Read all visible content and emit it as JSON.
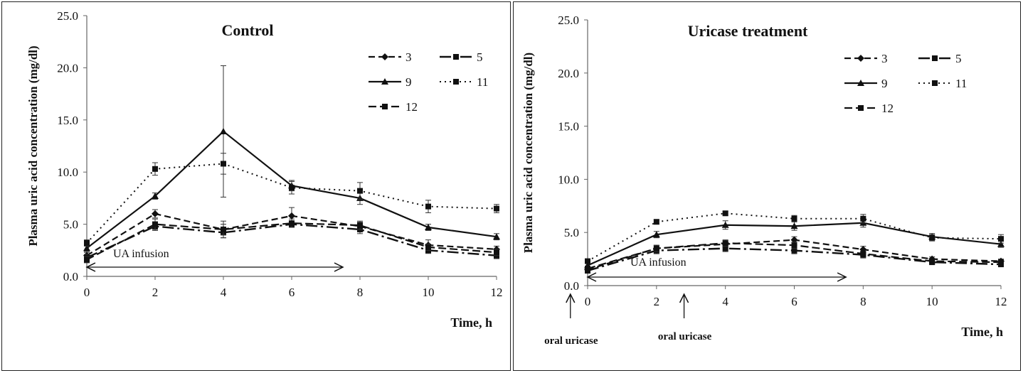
{
  "chart_data": [
    {
      "type": "line",
      "title": "Control",
      "ylabel": "Plasma uric acid concentration (mg/dl)",
      "xlabel": "Time, h",
      "ylim": [
        0,
        25
      ],
      "xlim": [
        0,
        12
      ],
      "yticks": [
        "0.0",
        "5.0",
        "10.0",
        "15.0",
        "20.0",
        "25.0"
      ],
      "xticks": [
        "0",
        "2",
        "4",
        "6",
        "8",
        "10",
        "12"
      ],
      "x": [
        0,
        2,
        4,
        6,
        8,
        10,
        12
      ],
      "grid": false,
      "legend_position": "top-right",
      "series": [
        {
          "name": "3",
          "style": "dash-diamond",
          "values": [
            2.0,
            6.0,
            4.5,
            5.8,
            4.8,
            3.0,
            2.6
          ],
          "errors": [
            0.3,
            0.4,
            0.8,
            0.8,
            0.4,
            0.5,
            0.3
          ]
        },
        {
          "name": "5",
          "style": "dashdot-square",
          "values": [
            1.8,
            4.8,
            4.2,
            5.0,
            4.5,
            2.5,
            2.0
          ],
          "errors": [
            0.3,
            0.4,
            0.5,
            0.3,
            0.4,
            0.3,
            0.3
          ]
        },
        {
          "name": "9",
          "style": "solid-triangle",
          "values": [
            2.7,
            7.7,
            13.9,
            8.7,
            7.5,
            4.7,
            3.8
          ],
          "errors": [
            0.3,
            0.3,
            6.3,
            0.5,
            0.6,
            0.3,
            0.3
          ]
        },
        {
          "name": "11",
          "style": "dotted-square",
          "values": [
            3.2,
            10.3,
            10.8,
            8.5,
            8.2,
            6.7,
            6.5
          ],
          "errors": [
            0.3,
            0.6,
            1.0,
            0.6,
            0.8,
            0.6,
            0.4
          ]
        },
        {
          "name": "12",
          "style": "dash-square",
          "values": [
            1.6,
            5.0,
            4.5,
            5.1,
            4.9,
            2.8,
            2.3
          ],
          "errors": [
            0.3,
            0.5,
            0.5,
            0.4,
            0.4,
            0.3,
            0.3
          ]
        }
      ],
      "annotations": [
        {
          "text": "UA infusion",
          "arrow": "double",
          "x_from": 0,
          "x_to": 7.5
        }
      ]
    },
    {
      "type": "line",
      "title": "Uricase treatment",
      "ylabel": "Plasma uric acid concentration (mg/dl)",
      "xlabel": "Time, h",
      "ylim": [
        0,
        25
      ],
      "xlim": [
        0,
        12
      ],
      "yticks": [
        "0.0",
        "5.0",
        "10.0",
        "15.0",
        "20.0",
        "25.0"
      ],
      "xticks": [
        "0",
        "2",
        "4",
        "6",
        "8",
        "10",
        "12"
      ],
      "x": [
        0,
        2,
        4,
        6,
        8,
        10,
        12
      ],
      "grid": false,
      "legend_position": "top-right",
      "series": [
        {
          "name": "3",
          "style": "dash-diamond",
          "values": [
            1.5,
            3.5,
            3.9,
            4.3,
            3.4,
            2.5,
            2.3
          ],
          "errors": [
            0.2,
            0.3,
            0.3,
            0.3,
            0.3,
            0.2,
            0.2
          ]
        },
        {
          "name": "5",
          "style": "dashdot-square",
          "values": [
            1.4,
            3.3,
            3.5,
            3.3,
            2.9,
            2.2,
            2.0
          ],
          "errors": [
            0.2,
            0.3,
            0.3,
            0.3,
            0.3,
            0.2,
            0.2
          ]
        },
        {
          "name": "9",
          "style": "solid-triangle",
          "values": [
            1.9,
            4.8,
            5.7,
            5.6,
            5.9,
            4.6,
            3.9
          ],
          "errors": [
            0.2,
            0.3,
            0.4,
            0.4,
            0.4,
            0.3,
            0.3
          ]
        },
        {
          "name": "11",
          "style": "dotted-square",
          "values": [
            2.3,
            6.0,
            6.8,
            6.3,
            6.3,
            4.5,
            4.4
          ],
          "errors": [
            0.2,
            0.2,
            0.2,
            0.3,
            0.4,
            0.3,
            0.4
          ]
        },
        {
          "name": "12",
          "style": "dash-square",
          "values": [
            1.6,
            3.5,
            4.0,
            3.8,
            3.0,
            2.3,
            2.2
          ],
          "errors": [
            0.2,
            0.3,
            0.3,
            0.3,
            0.2,
            0.2,
            0.2
          ]
        }
      ],
      "annotations": [
        {
          "text": "UA infusion",
          "arrow": "double",
          "x_from": 0,
          "x_to": 7.5
        },
        {
          "text": "oral uricase",
          "arrow": "up",
          "x": -0.5
        },
        {
          "text": "oral uricase",
          "arrow": "up",
          "x": 2.8
        }
      ]
    }
  ]
}
